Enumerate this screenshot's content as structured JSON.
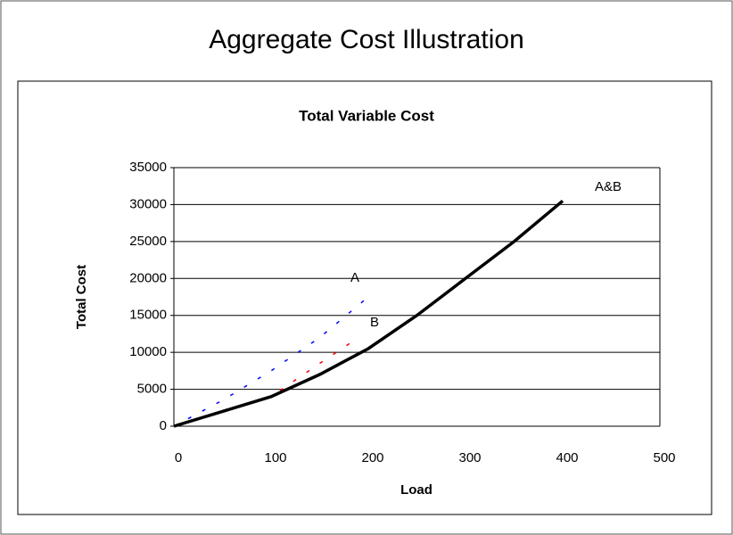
{
  "page_title": "Aggregate Cost Illustration",
  "chart_data": {
    "type": "line",
    "title": "Total Variable Cost",
    "x_label": "Load",
    "y_label": "Total Cost",
    "xlim": [
      0,
      500
    ],
    "xticks": [
      0,
      100,
      200,
      300,
      400,
      500
    ],
    "ylim": [
      0,
      35000
    ],
    "yticks": [
      0,
      5000,
      10000,
      15000,
      20000,
      25000,
      30000,
      35000
    ],
    "grid": true,
    "series": [
      {
        "name": "A",
        "color": "#0000ff",
        "dashed": true,
        "x": [
          0,
          50,
          100,
          150,
          200
        ],
        "values": [
          0,
          3500,
          7500,
          12000,
          17500
        ]
      },
      {
        "name": "B",
        "color": "#ff0000",
        "dashed": true,
        "x": [
          0,
          100,
          150,
          190
        ],
        "values": [
          0,
          4000,
          8500,
          12000
        ]
      },
      {
        "name": "A&B",
        "color": "#000000",
        "dashed": false,
        "x": [
          0,
          50,
          100,
          150,
          200,
          250,
          300,
          350,
          400
        ],
        "values": [
          0,
          2000,
          4000,
          7000,
          10500,
          15000,
          20000,
          25000,
          30500
        ]
      }
    ],
    "annotations": [
      "A",
      "B",
      "A&B"
    ]
  }
}
